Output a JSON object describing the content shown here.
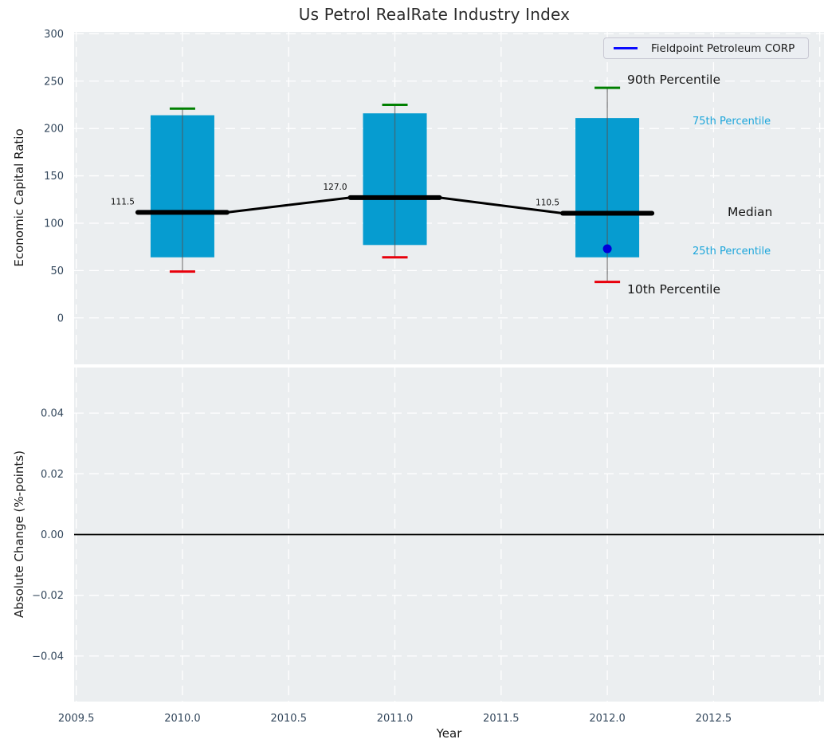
{
  "title": "Us Petrol RealRate Industry Index",
  "legend": {
    "label": "Fieldpoint Petroleum CORP"
  },
  "annotations": {
    "p90": "90th Percentile",
    "p75": "75th Percentile",
    "median": "Median",
    "p25": "25th Percentile",
    "p10": "10th Percentile"
  },
  "colors": {
    "bar": "#069cd0",
    "percentile_text": "#1da6db",
    "cap_top": "#008000",
    "cap_bottom": "#e8000b",
    "whisker": "#555555",
    "median_line": "#000000",
    "company_line": "#0a0aff",
    "company_dot": "#0000d9",
    "plot_bg": "#ebeef0",
    "grid": "#ffffff",
    "tick_label": "#33475c",
    "zero_line": "#000000"
  },
  "chart_data": [
    {
      "type": "bar",
      "subplot": "top",
      "title": "Us Petrol RealRate Industry Index",
      "xlabel": "Year",
      "ylabel": "Economic Capital Ratio",
      "x": [
        2010,
        2011,
        2012
      ],
      "series": [
        {
          "role": "p90",
          "name": "90th Percentile",
          "values": [
            221,
            225,
            243
          ]
        },
        {
          "role": "p75",
          "name": "75th Percentile",
          "values": [
            214,
            216,
            211
          ]
        },
        {
          "role": "median",
          "name": "Median",
          "values": [
            111.5,
            127.0,
            110.5
          ]
        },
        {
          "role": "p25",
          "name": "25th Percentile",
          "values": [
            64,
            77,
            64
          ]
        },
        {
          "role": "p10",
          "name": "10th Percentile",
          "values": [
            49,
            64,
            38
          ]
        },
        {
          "role": "company",
          "name": "Fieldpoint Petroleum CORP",
          "type": "scatter",
          "values": [
            null,
            null,
            73
          ]
        }
      ],
      "median_labels": [
        "111.5",
        "127.0",
        "110.5"
      ],
      "xticks": [
        2009.5,
        2010.0,
        2010.5,
        2011.0,
        2011.5,
        2012.0,
        2012.5
      ],
      "xtick_labels": [
        "2009.5",
        "2010.0",
        "2010.5",
        "2011.0",
        "2011.5",
        "2012.0",
        "2012.5"
      ],
      "grid_x": [
        2009.5,
        2010.0,
        2010.5,
        2011.0,
        2011.5,
        2012.0,
        2012.5,
        2013.0
      ],
      "yticks": [
        0,
        50,
        100,
        150,
        200,
        250,
        300
      ],
      "ytick_labels": [
        "0",
        "50",
        "100",
        "150",
        "200",
        "250",
        "300"
      ],
      "xlim": [
        2009.49,
        2013.02
      ],
      "ylim": [
        -49,
        302
      ],
      "grid": true,
      "legend_position": "upper right"
    },
    {
      "type": "line",
      "subplot": "bottom",
      "xlabel": "Year",
      "ylabel": "Absolute Change (%-points)",
      "x": [],
      "values": [],
      "yticks": [
        0.04,
        0.02,
        0.0,
        -0.02,
        -0.04
      ],
      "ytick_labels": [
        "0.04",
        "0.02",
        "0.00",
        "−0.02",
        "−0.04"
      ],
      "ylim": [
        -0.055,
        0.055
      ],
      "zero_line": 0.0,
      "grid": true
    }
  ]
}
